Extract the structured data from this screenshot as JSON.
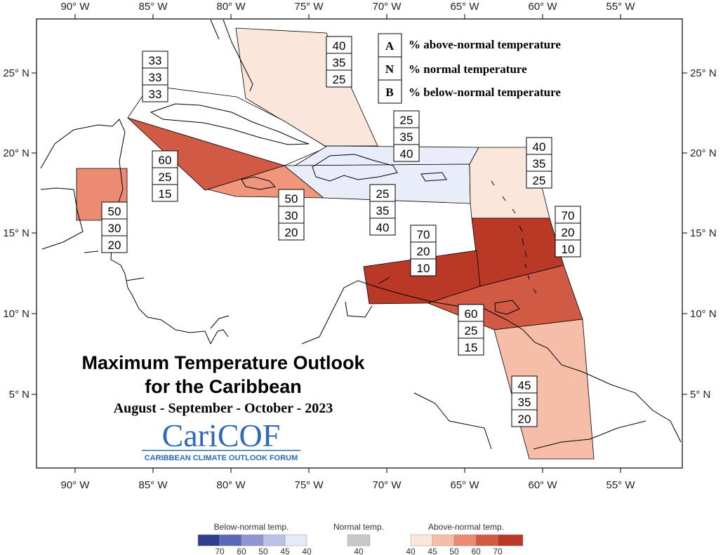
{
  "map": {
    "title_line1": "Maximum Temperature Outlook",
    "title_line2": "for the Caribbean",
    "period": "August - September - October - 2023",
    "logo_text": "CariCOF",
    "logo_tagline": "CARIBBEAN CLIMATE OUTLOOK FORUM"
  },
  "axes": {
    "lon_labels": [
      "90° W",
      "85° W",
      "80° W",
      "75° W",
      "70° W",
      "65° W",
      "60° W",
      "55° W"
    ],
    "lat_labels": [
      "25° N",
      "20° N",
      "15° N",
      "10° N",
      "5° N"
    ]
  },
  "key": [
    {
      "letter": "A",
      "text": "% above-normal temperature"
    },
    {
      "letter": "N",
      "text": "% normal temperature"
    },
    {
      "letter": "B",
      "text": "% below-normal temperature"
    }
  ],
  "regions": [
    {
      "id": "bahamas",
      "a": 40,
      "n": 35,
      "b": 25,
      "color": "#fbe6dc"
    },
    {
      "id": "cuba",
      "a": 33,
      "n": 33,
      "b": 33,
      "color": "#ffffff"
    },
    {
      "id": "cayman-jamaica-west",
      "a": 60,
      "n": 25,
      "b": 15,
      "color": "#d05a43"
    },
    {
      "id": "jamaica",
      "a": 50,
      "n": 30,
      "b": 20,
      "color": "#ef967d"
    },
    {
      "id": "belize",
      "a": 50,
      "n": 30,
      "b": 20,
      "color": "#ea8b72"
    },
    {
      "id": "turks-caicos",
      "a": 25,
      "n": 35,
      "b": 40,
      "color": "#e9ecf9"
    },
    {
      "id": "hispaniola-puerto-rico",
      "a": 25,
      "n": 35,
      "b": 40,
      "color": "#e9ecf9"
    },
    {
      "id": "leeward-islands",
      "a": 40,
      "n": 35,
      "b": 25,
      "color": "#fbe6dc"
    },
    {
      "id": "windward-islands",
      "a": 70,
      "n": 20,
      "b": 10,
      "color": "#b93826"
    },
    {
      "id": "abc-islands",
      "a": 70,
      "n": 20,
      "b": 10,
      "color": "#b93826"
    },
    {
      "id": "trinidad",
      "a": 60,
      "n": 25,
      "b": 15,
      "color": "#d05a43"
    },
    {
      "id": "guianas",
      "a": 45,
      "n": 35,
      "b": 20,
      "color": "#f6bda8"
    }
  ],
  "colorbar": {
    "below_label": "Below-normal temp.",
    "normal_label": "Normal temp.",
    "above_label": "Above-normal temp.",
    "below_ticks": [
      "70",
      "60",
      "50",
      "45",
      "40"
    ],
    "normal_ticks": [
      "40"
    ],
    "above_ticks": [
      "40",
      "45",
      "50",
      "60",
      "70"
    ],
    "below_colors": [
      "#2f3d8f",
      "#5b66b8",
      "#8f96d2",
      "#bcc1e6",
      "#e6e9f7"
    ],
    "normal_color": "#c8c8c8",
    "above_colors": [
      "#fbe6dc",
      "#f6bda8",
      "#ea8b72",
      "#d05a43",
      "#b93826"
    ]
  }
}
